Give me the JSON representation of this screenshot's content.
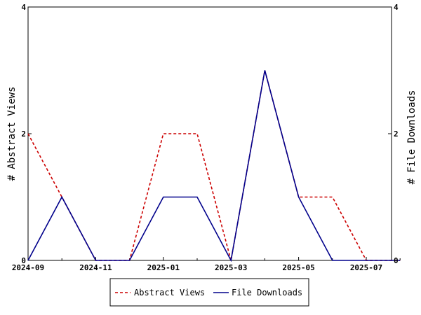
{
  "chart_data": {
    "type": "line",
    "x_type": "date",
    "x": [
      "2024-09",
      "2024-10",
      "2024-11",
      "2024-12",
      "2025-01",
      "2025-02",
      "2025-03",
      "2025-04",
      "2025-05",
      "2025-06",
      "2025-07",
      "2025-08"
    ],
    "x_tick_labels": [
      "2024-09",
      "2024-11",
      "2025-01",
      "2025-03",
      "2025-05",
      "2025-07"
    ],
    "series": [
      {
        "name": "Abstract Views",
        "axis": "left",
        "color": "#cc0000",
        "dash": "dashed",
        "values": [
          2,
          1,
          0,
          0,
          2,
          2,
          0,
          3,
          1,
          1,
          0,
          0
        ]
      },
      {
        "name": "File Downloads",
        "axis": "right",
        "color": "#00008b",
        "dash": "solid",
        "values": [
          0,
          1,
          0,
          0,
          1,
          1,
          0,
          3,
          1,
          0,
          0,
          0
        ]
      }
    ],
    "ylabel": "# Abstract Views",
    "y2label": "# File Downloads",
    "ylim": [
      0,
      4
    ],
    "y2lim": [
      0,
      4
    ],
    "y_ticks": [
      0,
      2,
      4
    ],
    "y2_ticks": [
      0,
      2,
      4
    ],
    "grid": false,
    "legend_position": "bottom"
  }
}
